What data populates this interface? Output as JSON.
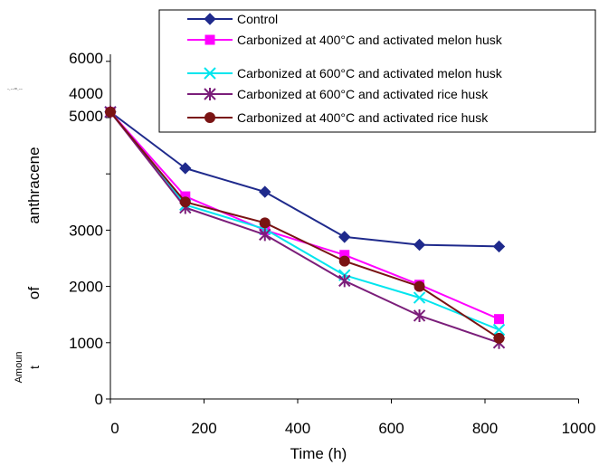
{
  "chart_data": {
    "type": "line",
    "title": "",
    "xlabel": "Time (h)",
    "ylabel_parts": [
      "Amoun",
      "t",
      "of",
      "anthracene"
    ],
    "stray_mark": "-.--=.--",
    "xlim": [
      0,
      1000
    ],
    "xticks": [
      0,
      200,
      400,
      600,
      800,
      1000
    ],
    "ylim": [
      0,
      6000
    ],
    "yticks_main": [
      0,
      1000,
      2000,
      3000
    ],
    "yticks_upper": [
      "4000",
      "5000",
      "6000"
    ],
    "grid": false,
    "legend_position": "top-right",
    "series": [
      {
        "name": "Control",
        "color": "#1F2A8C",
        "marker": "diamond",
        "points": [
          [
            0,
            5100
          ],
          [
            160,
            4100
          ],
          [
            330,
            3680
          ],
          [
            500,
            2880
          ],
          [
            660,
            2740
          ],
          [
            830,
            2710
          ]
        ]
      },
      {
        "name": "Carbonized at 400°C and activated melon husk",
        "color": "#FF00FF",
        "marker": "square",
        "points": [
          [
            0,
            5100
          ],
          [
            160,
            3600
          ],
          [
            330,
            3000
          ],
          [
            500,
            2560
          ],
          [
            660,
            2030
          ],
          [
            830,
            1420
          ]
        ]
      },
      {
        "name": "Carbonized at 600°C and activated melon husk",
        "color": "#00E5EE",
        "marker": "x",
        "points": [
          [
            0,
            5100
          ],
          [
            160,
            3450
          ],
          [
            330,
            3020
          ],
          [
            500,
            2200
          ],
          [
            660,
            1800
          ],
          [
            830,
            1230
          ]
        ]
      },
      {
        "name": "Carbonized at 600°C and activated rice husk",
        "color": "#7B1E7A",
        "marker": "star",
        "points": [
          [
            0,
            5100
          ],
          [
            160,
            3400
          ],
          [
            330,
            2920
          ],
          [
            500,
            2100
          ],
          [
            660,
            1480
          ],
          [
            830,
            1000
          ]
        ]
      },
      {
        "name": "Carbonized at 400°C and activated rice husk",
        "color": "#7A1414",
        "marker": "circle",
        "points": [
          [
            0,
            5100
          ],
          [
            160,
            3500
          ],
          [
            330,
            3130
          ],
          [
            500,
            2450
          ],
          [
            660,
            2000
          ],
          [
            830,
            1080
          ]
        ]
      }
    ]
  }
}
